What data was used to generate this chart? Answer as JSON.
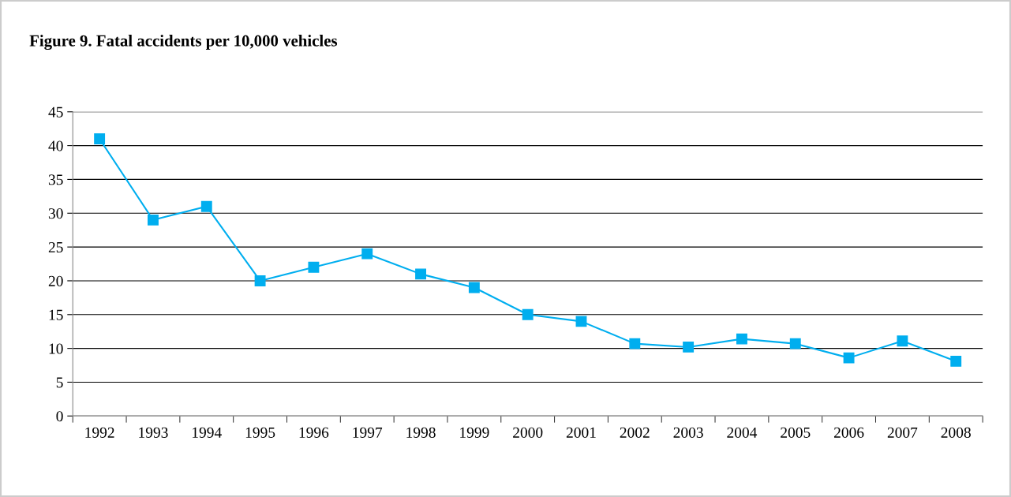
{
  "chart_data": {
    "type": "line",
    "title": "Figure 9. Fatal accidents per 10,000 vehicles",
    "categories": [
      "1992",
      "1993",
      "1994",
      "1995",
      "1996",
      "1997",
      "1998",
      "1999",
      "2000",
      "2001",
      "2002",
      "2003",
      "2004",
      "2005",
      "2006",
      "2007",
      "2008"
    ],
    "series": [
      {
        "color": "#00aeef",
        "values": [
          41,
          29,
          31,
          20,
          22,
          24,
          21,
          19,
          15,
          14,
          10.7,
          10.2,
          11.4,
          10.7,
          8.6,
          11.1,
          8.1
        ]
      }
    ],
    "ylim": [
      0,
      45
    ],
    "yticks": [
      0,
      5,
      10,
      15,
      20,
      25,
      30,
      35,
      40,
      45
    ],
    "grid": "y",
    "marker": "square",
    "line_style": "solid",
    "legend": false
  }
}
